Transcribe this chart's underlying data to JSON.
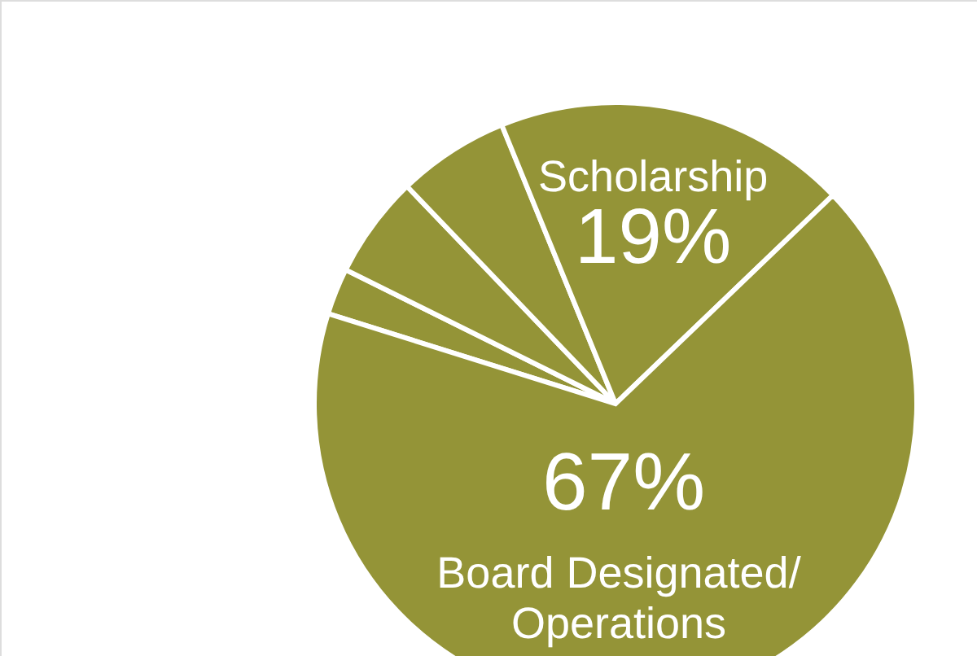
{
  "chart_data": {
    "type": "pie",
    "categories": [
      null,
      null,
      null,
      "Scholarship",
      "Board Designated/\nOperations"
    ],
    "values": [
      2.5,
      5.5,
      6,
      19,
      67
    ],
    "colors": [
      "#949437",
      "#949437",
      "#949437",
      "#949437",
      "#949437"
    ],
    "value_labels": [
      null,
      null,
      null,
      "19%",
      "67%"
    ]
  }
}
